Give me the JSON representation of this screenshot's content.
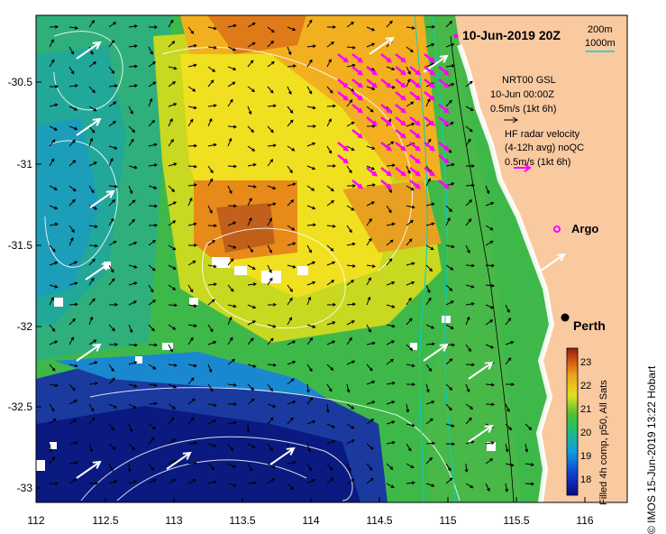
{
  "header": {
    "date": "10-Jun-2019 20Z",
    "depth_200": "200m",
    "depth_1000": "1000m"
  },
  "legend": {
    "model_name": "NRT00 GSL",
    "model_date": "10-Jun 00:00Z",
    "model_scale": "0.5m/s (1kt 6h)",
    "radar_title": "HF radar velocity",
    "radar_sub": "(4-12h avg) noQC",
    "radar_scale": "0.5m/s (1kt 6h)"
  },
  "labels": {
    "argo": "Argo",
    "perth": "Perth"
  },
  "colorbar": {
    "ticks": [
      "23",
      "22",
      "21",
      "20",
      "19",
      "18"
    ],
    "label": "Filled 4h comp, p50, All Sats"
  },
  "credit": "© IMOS 15-Jun-2019 13:22 Hobart",
  "axes": {
    "y_ticks": [
      "-30.5",
      "-31",
      "-31.5",
      "-32",
      "-32.5",
      "-33"
    ],
    "x_ticks": [
      "112",
      "112.5",
      "113",
      "113.5",
      "114",
      "114.5",
      "115",
      "115.5",
      "116"
    ]
  },
  "colors": {
    "land": "#f9c9a0",
    "arrow_radar": "#ff00ff",
    "depth_200_color": "#000000",
    "depth_1000_color": "#00d0d0"
  }
}
